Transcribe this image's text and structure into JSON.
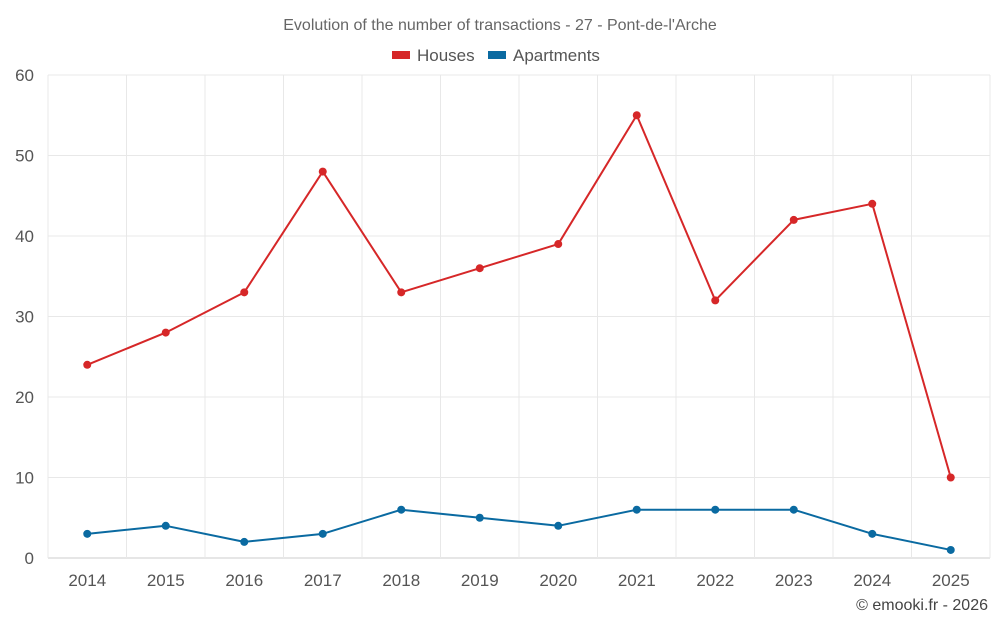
{
  "chart_data": {
    "type": "line",
    "title": "Evolution of the number of transactions - 27 - Pont-de-l'Arche",
    "categories": [
      "2014",
      "2015",
      "2016",
      "2017",
      "2018",
      "2019",
      "2020",
      "2021",
      "2022",
      "2023",
      "2024",
      "2025"
    ],
    "series": [
      {
        "name": "Houses",
        "color": "#d62728",
        "values": [
          24,
          28,
          33,
          48,
          33,
          36,
          39,
          55,
          32,
          42,
          44,
          10
        ]
      },
      {
        "name": "Apartments",
        "color": "#0a6aa1",
        "values": [
          3,
          4,
          2,
          3,
          6,
          5,
          4,
          6,
          6,
          6,
          3,
          1
        ]
      }
    ],
    "ylim": [
      0,
      60
    ],
    "yticks": [
      0,
      10,
      20,
      30,
      40,
      50,
      60
    ],
    "xlabel": "",
    "ylabel": "",
    "grid": true,
    "legend": "top-center"
  },
  "credit": "© emooki.fr - 2026"
}
